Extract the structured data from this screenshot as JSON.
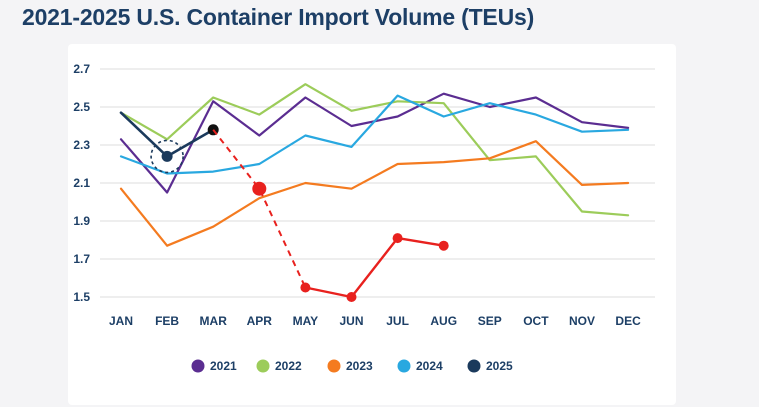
{
  "title": "2021-2025 U.S. Container Import Volume (TEUs)",
  "chart_data": {
    "type": "line",
    "title": "2021-2025 U.S. Container Import Volume (TEUs)",
    "xlabel": "",
    "ylabel": "",
    "categories": [
      "JAN",
      "FEB",
      "MAR",
      "APR",
      "MAY",
      "JUN",
      "JUL",
      "AUG",
      "SEP",
      "OCT",
      "NOV",
      "DEC"
    ],
    "yticks": [
      "2.7",
      "2.5",
      "2.3",
      "2.1",
      "1.9",
      "1.7",
      "1.5"
    ],
    "ylim": [
      1.5,
      2.7
    ],
    "grid": true,
    "legend_position": "bottom",
    "series": [
      {
        "name": "2021",
        "color": "#5b2d91",
        "values": [
          2.33,
          2.05,
          2.53,
          2.35,
          2.55,
          2.4,
          2.45,
          2.57,
          2.5,
          2.55,
          2.42,
          2.39
        ]
      },
      {
        "name": "2022",
        "color": "#9ccc5a",
        "values": [
          2.47,
          2.33,
          2.55,
          2.46,
          2.62,
          2.48,
          2.53,
          2.52,
          2.22,
          2.24,
          1.95,
          1.93
        ]
      },
      {
        "name": "2023",
        "color": "#f47b20",
        "values": [
          2.07,
          1.77,
          1.87,
          2.02,
          2.1,
          2.07,
          2.2,
          2.21,
          2.23,
          2.32,
          2.09,
          2.1
        ]
      },
      {
        "name": "2024",
        "color": "#29a8e0",
        "values": [
          2.24,
          2.15,
          2.16,
          2.2,
          2.35,
          2.29,
          2.56,
          2.45,
          2.52,
          2.46,
          2.37,
          2.38
        ]
      },
      {
        "name": "2025",
        "color": "#1b3a5c",
        "values": [
          2.47,
          2.24,
          2.38,
          null,
          null,
          null,
          null,
          null,
          null,
          null,
          null,
          null
        ]
      }
    ],
    "annotations": {
      "circled_point": {
        "series": "2025",
        "category": "FEB",
        "value": 2.24
      },
      "projection": {
        "color": "#e8211e",
        "dashed": [
          {
            "category": "MAR",
            "value": 2.38
          },
          {
            "category": "APR",
            "value": 2.07
          },
          {
            "category": "MAY",
            "value": 1.55
          }
        ],
        "solid": [
          {
            "category": "MAY",
            "value": 1.55
          },
          {
            "category": "JUN",
            "value": 1.5
          },
          {
            "category": "JUL",
            "value": 1.81
          },
          {
            "category": "AUG",
            "value": 1.77
          }
        ]
      }
    }
  }
}
